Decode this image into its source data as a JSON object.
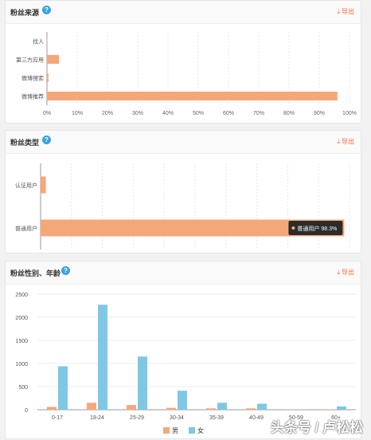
{
  "colors": {
    "orange": "#f5a77a",
    "blue": "#7ec8e6",
    "accent": "#f06d3c",
    "help": "#3aa3e3"
  },
  "panels": {
    "source": {
      "title": "粉丝来源",
      "export_label": "导出"
    },
    "type": {
      "title": "粉丝类型",
      "export_label": "导出"
    },
    "gender_age": {
      "title": "粉丝性别、年龄",
      "export_label": "导出"
    }
  },
  "tooltip": {
    "label": "普通用户 98.3%"
  },
  "watermark": "头条号 / 卢松松",
  "chart_data": [
    {
      "type": "bar",
      "orientation": "horizontal",
      "categories": [
        "找人",
        "第三方应用",
        "微博搜索",
        "微博推荐"
      ],
      "values": [
        0,
        4,
        0.5,
        96
      ],
      "xlim": [
        0,
        100
      ],
      "xticks": [
        "0%",
        "10%",
        "20%",
        "30%",
        "40%",
        "50%",
        "60%",
        "70%",
        "80%",
        "90%",
        "100%"
      ],
      "grid": "vertical-dashed"
    },
    {
      "type": "bar",
      "orientation": "horizontal",
      "categories": [
        "认证用户",
        "普通用户"
      ],
      "values": [
        1.7,
        98.3
      ],
      "xlim": [
        0,
        100
      ],
      "xticks": [
        "0%",
        "10%",
        "20%",
        "30%",
        "40%",
        "50%",
        "60%",
        "70%",
        "80%",
        "90%",
        "100%"
      ],
      "grid": "vertical-dashed"
    },
    {
      "type": "bar",
      "categories": [
        "0-17",
        "18-24",
        "25-29",
        "30-34",
        "35-39",
        "40-49",
        "50-59",
        "60+"
      ],
      "series": [
        {
          "name": "男",
          "values": [
            60,
            150,
            100,
            40,
            30,
            30,
            5,
            5
          ]
        },
        {
          "name": "女",
          "values": [
            940,
            2270,
            1150,
            410,
            150,
            130,
            10,
            70
          ]
        }
      ],
      "ylim": [
        0,
        2500
      ],
      "yticks": [
        "0",
        "500",
        "1000",
        "1500",
        "2000",
        "2500"
      ],
      "legend": "bottom-center",
      "grid": "horizontal"
    }
  ]
}
